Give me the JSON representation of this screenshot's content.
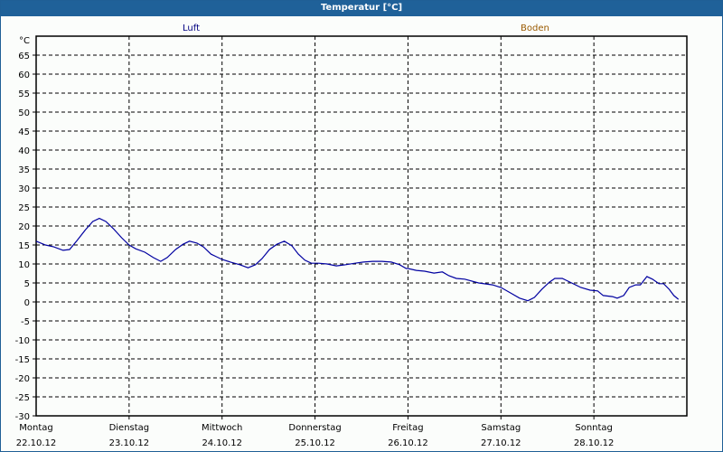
{
  "title": "Temperatur [°C]",
  "legend": {
    "luft": "Luft",
    "boden": "Boden"
  },
  "colors": {
    "titlebar": "#1f6199",
    "luft": "#000080",
    "boden": "#9a5a00",
    "line": "#0000a0"
  },
  "chart_data": {
    "type": "line",
    "title": "Temperatur [°C]",
    "ylabel": "°C",
    "xlabel": "",
    "ylim": [
      -30,
      70
    ],
    "yticks": [
      65,
      60,
      55,
      50,
      45,
      40,
      35,
      30,
      25,
      20,
      15,
      10,
      5,
      0,
      -5,
      -10,
      -15,
      -20,
      -25,
      -30
    ],
    "grid": true,
    "legend": [
      "Luft",
      "Boden"
    ],
    "legend_position": "top",
    "x_tick_labels": [
      {
        "day": "Montag",
        "date": "22.10.12"
      },
      {
        "day": "Dienstag",
        "date": "23.10.12"
      },
      {
        "day": "Mittwoch",
        "date": "24.10.12"
      },
      {
        "day": "Donnerstag",
        "date": "25.10.12"
      },
      {
        "day": "Freitag",
        "date": "26.10.12"
      },
      {
        "day": "Samstag",
        "date": "27.10.12"
      },
      {
        "day": "Sonntag",
        "date": "28.10.12"
      }
    ],
    "series": [
      {
        "name": "Luft",
        "x_days": [
          0,
          0.1,
          0.19,
          0.29,
          0.36,
          0.44,
          0.53,
          0.61,
          0.68,
          0.75,
          0.83,
          0.92,
          1.0,
          1.07,
          1.17,
          1.26,
          1.34,
          1.41,
          1.5,
          1.58,
          1.65,
          1.73,
          1.8,
          1.88,
          1.94,
          2.0,
          2.09,
          2.19,
          2.28,
          2.36,
          2.43,
          2.51,
          2.59,
          2.67,
          2.75,
          2.82,
          2.89,
          2.96,
          3.04,
          3.13,
          3.23,
          3.33,
          3.43,
          3.52,
          3.62,
          3.72,
          3.82,
          3.91,
          3.98,
          4.0,
          4.09,
          4.18,
          4.28,
          4.37,
          4.44,
          4.52,
          4.61,
          4.76,
          4.91,
          5.0,
          5.1,
          5.2,
          5.29,
          5.36,
          5.44,
          5.52,
          5.58,
          5.66,
          5.76,
          5.86,
          5.96,
          6.04,
          6.1,
          6.2,
          6.25,
          6.32,
          6.38,
          6.45,
          6.5,
          6.57,
          6.63,
          6.7,
          6.75,
          6.81,
          6.86,
          6.91
        ],
        "values": [
          16.0,
          15.0,
          14.5,
          13.6,
          13.8,
          16.2,
          19.0,
          21.2,
          22.0,
          21.2,
          19.3,
          16.9,
          15.0,
          14.0,
          13.1,
          11.7,
          10.7,
          11.7,
          13.8,
          15.2,
          16.0,
          15.5,
          14.5,
          12.6,
          11.9,
          11.2,
          10.5,
          9.8,
          9.0,
          9.8,
          11.4,
          13.8,
          15.2,
          16.0,
          14.8,
          12.6,
          11.0,
          10.2,
          10.2,
          10.0,
          9.5,
          9.8,
          10.2,
          10.5,
          10.7,
          10.7,
          10.5,
          9.8,
          8.8,
          8.8,
          8.3,
          8.1,
          7.6,
          7.9,
          6.9,
          6.2,
          6.0,
          5.0,
          4.5,
          3.8,
          2.4,
          1.0,
          0.3,
          1.2,
          3.3,
          5.2,
          6.2,
          6.2,
          5.0,
          3.8,
          3.1,
          2.9,
          1.7,
          1.4,
          1.0,
          1.7,
          3.8,
          4.5,
          4.5,
          6.7,
          6.0,
          4.8,
          4.8,
          3.3,
          1.7,
          0.7
        ]
      },
      {
        "name": "Boden",
        "values": []
      }
    ]
  }
}
